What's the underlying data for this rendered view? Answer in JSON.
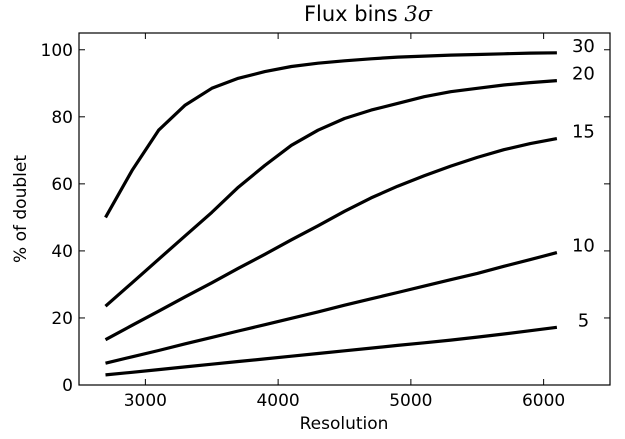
{
  "chart_data": {
    "type": "line",
    "title": "Flux bins ",
    "title_math": "3σ",
    "xlabel": "Resolution",
    "ylabel": "% of doublet",
    "xlim": [
      2500,
      6500
    ],
    "ylim": [
      0,
      105
    ],
    "xticks": [
      3000,
      4000,
      5000,
      6000
    ],
    "yticks": [
      0,
      20,
      40,
      60,
      80,
      100
    ],
    "grid": false,
    "line_color": "#000000",
    "series": [
      {
        "name": "30",
        "x": [
          2700,
          2900,
          3100,
          3300,
          3500,
          3700,
          3900,
          4100,
          4300,
          4500,
          4700,
          4900,
          5100,
          5300,
          5500,
          5700,
          5900,
          6100
        ],
        "y": [
          50,
          64,
          76,
          83.5,
          88.5,
          91.5,
          93.5,
          95,
          96,
          96.7,
          97.3,
          97.8,
          98.1,
          98.4,
          98.6,
          98.8,
          99,
          99.1
        ]
      },
      {
        "name": "20",
        "x": [
          2700,
          2900,
          3100,
          3300,
          3500,
          3700,
          3900,
          4100,
          4300,
          4500,
          4700,
          4900,
          5100,
          5300,
          5500,
          5700,
          5900,
          6100
        ],
        "y": [
          23.5,
          30.5,
          37.5,
          44.5,
          51.5,
          59,
          65.5,
          71.5,
          76,
          79.5,
          82,
          84,
          86,
          87.5,
          88.5,
          89.5,
          90.2,
          90.8
        ]
      },
      {
        "name": "15",
        "x": [
          2700,
          2900,
          3100,
          3300,
          3500,
          3700,
          3900,
          4100,
          4300,
          4500,
          4700,
          4900,
          5100,
          5300,
          5500,
          5700,
          5900,
          6100
        ],
        "y": [
          13.5,
          17.8,
          22,
          26.3,
          30.5,
          34.8,
          39,
          43.3,
          47.5,
          51.8,
          55.8,
          59.3,
          62.4,
          65.3,
          67.9,
          70.2,
          72,
          73.5
        ]
      },
      {
        "name": "10",
        "x": [
          2700,
          2900,
          3100,
          3300,
          3500,
          3700,
          3900,
          4100,
          4300,
          4500,
          4700,
          4900,
          5100,
          5300,
          5500,
          5700,
          5900,
          6100
        ],
        "y": [
          6.5,
          8.4,
          10.3,
          12.3,
          14.2,
          16.1,
          18,
          19.9,
          21.8,
          23.8,
          25.7,
          27.6,
          29.5,
          31.4,
          33.3,
          35.4,
          37.4,
          39.5
        ]
      },
      {
        "name": "5",
        "x": [
          2700,
          2900,
          3100,
          3300,
          3500,
          3700,
          3900,
          4100,
          4300,
          4500,
          4700,
          4900,
          5100,
          5300,
          5500,
          5700,
          5900,
          6100
        ],
        "y": [
          3,
          3.8,
          4.6,
          5.4,
          6.2,
          7,
          7.8,
          8.6,
          9.4,
          10.2,
          11,
          11.8,
          12.6,
          13.4,
          14.3,
          15.2,
          16.2,
          17.2
        ]
      }
    ]
  }
}
